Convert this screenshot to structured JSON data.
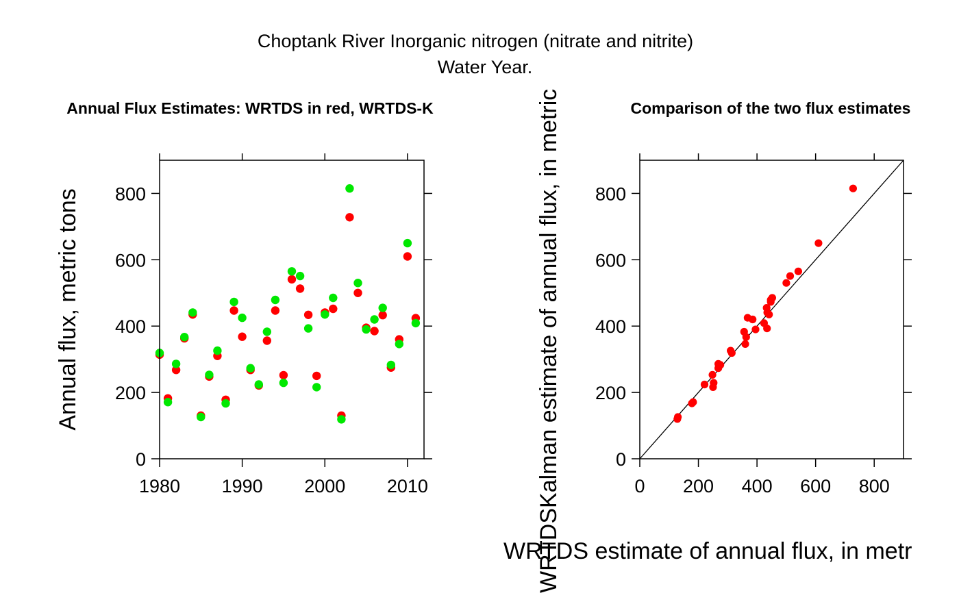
{
  "page": {
    "title_line1": "Choptank River Inorganic nitrogen (nitrate and nitrite)",
    "title_line2": "Water Year."
  },
  "chart_data": [
    {
      "type": "scatter",
      "title": "Annual Flux Estimates: WRTDS in red, WRTDS-K",
      "xlabel": "",
      "ylabel": "Annual flux, metric tons",
      "xlim": [
        1980,
        2012
      ],
      "ylim": [
        0,
        900
      ],
      "xticks": [
        1980,
        1990,
        2000,
        2010
      ],
      "yticks": [
        0,
        200,
        400,
        600,
        800
      ],
      "grid": false,
      "series": [
        {
          "color": "#ff0000",
          "points": [
            [
              1980,
              314
            ],
            [
              1981,
              182
            ],
            [
              1982,
              268
            ],
            [
              1983,
              363
            ],
            [
              1984,
              435
            ],
            [
              1985,
              130
            ],
            [
              1986,
              248
            ],
            [
              1987,
              310
            ],
            [
              1988,
              178
            ],
            [
              1989,
              447
            ],
            [
              1990,
              368
            ],
            [
              1991,
              268
            ],
            [
              1992,
              221
            ],
            [
              1993,
              356
            ],
            [
              1994,
              447
            ],
            [
              1995,
              252
            ],
            [
              1996,
              541
            ],
            [
              1997,
              513
            ],
            [
              1998,
              434
            ],
            [
              1999,
              250
            ],
            [
              2000,
              441
            ],
            [
              2001,
              452
            ],
            [
              2002,
              130
            ],
            [
              2003,
              728
            ],
            [
              2004,
              500
            ],
            [
              2005,
              395
            ],
            [
              2006,
              385
            ],
            [
              2007,
              433
            ],
            [
              2008,
              275
            ],
            [
              2009,
              360
            ],
            [
              2010,
              610
            ],
            [
              2011,
              424
            ]
          ]
        },
        {
          "color": "#00e800",
          "points": [
            [
              1980,
              319
            ],
            [
              1981,
              171
            ],
            [
              1982,
              286
            ],
            [
              1983,
              367
            ],
            [
              1984,
              441
            ],
            [
              1985,
              126
            ],
            [
              1986,
              253
            ],
            [
              1987,
              326
            ],
            [
              1988,
              167
            ],
            [
              1989,
              473
            ],
            [
              1990,
              425
            ],
            [
              1991,
              273
            ],
            [
              1992,
              224
            ],
            [
              1993,
              383
            ],
            [
              1994,
              479
            ],
            [
              1995,
              229
            ],
            [
              1996,
              565
            ],
            [
              1997,
              551
            ],
            [
              1998,
              393
            ],
            [
              1999,
              216
            ],
            [
              2000,
              435
            ],
            [
              2001,
              485
            ],
            [
              2002,
              119
            ],
            [
              2003,
              815
            ],
            [
              2004,
              530
            ],
            [
              2005,
              390
            ],
            [
              2006,
              420
            ],
            [
              2007,
              455
            ],
            [
              2008,
              283
            ],
            [
              2009,
              346
            ],
            [
              2010,
              650
            ],
            [
              2011,
              409
            ]
          ]
        }
      ]
    },
    {
      "type": "scatter",
      "title": "Comparison of the two flux estimates",
      "xlabel": "WRTDS estimate of annual flux, in metr",
      "ylabel": "WRTDSKalman estimate of annual flux, in metric",
      "xlim": [
        0,
        900
      ],
      "ylim": [
        0,
        900
      ],
      "xticks": [
        0,
        200,
        400,
        600,
        800
      ],
      "yticks": [
        0,
        200,
        400,
        600,
        800
      ],
      "grid": false,
      "reference_line": "y = x",
      "series": [
        {
          "color": "#ff0000",
          "points": [
            [
              130,
              126
            ],
            [
              128,
              120
            ],
            [
              178,
              167
            ],
            [
              182,
              171
            ],
            [
              221,
              224
            ],
            [
              248,
              253
            ],
            [
              250,
              216
            ],
            [
              252,
              229
            ],
            [
              268,
              273
            ],
            [
              268,
              286
            ],
            [
              275,
              283
            ],
            [
              310,
              326
            ],
            [
              314,
              319
            ],
            [
              356,
              383
            ],
            [
              360,
              346
            ],
            [
              363,
              367
            ],
            [
              368,
              425
            ],
            [
              385,
              420
            ],
            [
              395,
              390
            ],
            [
              424,
              409
            ],
            [
              433,
              455
            ],
            [
              434,
              393
            ],
            [
              435,
              441
            ],
            [
              441,
              435
            ],
            [
              447,
              473
            ],
            [
              447,
              479
            ],
            [
              452,
              485
            ],
            [
              500,
              530
            ],
            [
              513,
              551
            ],
            [
              541,
              565
            ],
            [
              610,
              650
            ],
            [
              728,
              815
            ]
          ]
        }
      ]
    }
  ]
}
